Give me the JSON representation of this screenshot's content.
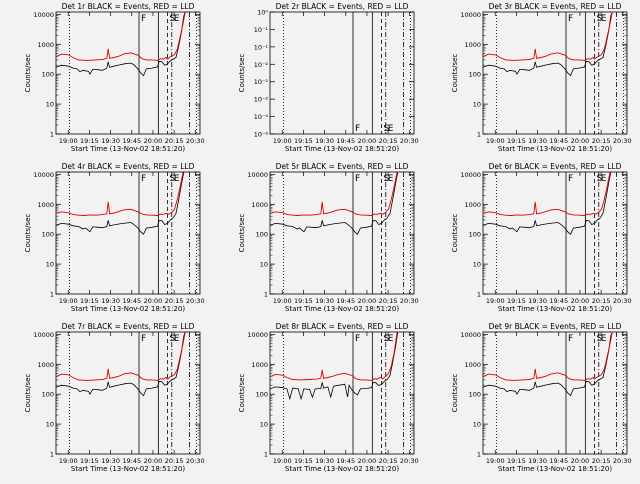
{
  "page": {
    "background": "#f2f2f2"
  },
  "colors": {
    "events": "#000000",
    "lld": "#dd0000",
    "axis": "#000000"
  },
  "x_axis": {
    "label": "Start Time (13-Nov-02 18:51:20)",
    "ticks": [
      {
        "label": "19:00",
        "t": 8.67
      },
      {
        "label": "19:15",
        "t": 23.67
      },
      {
        "label": "19:30",
        "t": 38.67
      },
      {
        "label": "19:45",
        "t": 53.67
      },
      {
        "label": "20:00",
        "t": 68.67
      },
      {
        "label": "20:15",
        "t": 83.67
      },
      {
        "label": "20:30",
        "t": 98.67
      }
    ],
    "xlim_minutes": [
      0,
      102
    ]
  },
  "y_axis_log": {
    "label": "Counts/sec",
    "ticks": [
      {
        "label": "1",
        "v": 1
      },
      {
        "label": "10",
        "v": 10
      },
      {
        "label": "100",
        "v": 100
      },
      {
        "label": "1000",
        "v": 1000
      },
      {
        "label": "10000",
        "v": 10000
      }
    ],
    "ylim": [
      1,
      12000
    ]
  },
  "y_axis_empty": {
    "label": "Counts/sec",
    "ticks": [
      {
        "label": "10⁻⁶",
        "v": 0
      },
      {
        "label": "10⁻⁴",
        "v": 1
      },
      {
        "label": "10⁻²",
        "v": 2
      },
      {
        "label": "10⁻²",
        "v": 3
      },
      {
        "label": "10⁻²",
        "v": 4
      },
      {
        "label": "10⁻¹",
        "v": 5
      },
      {
        "label": "10⁻¹",
        "v": 6
      },
      {
        "label": "10⁰",
        "v": 7
      }
    ],
    "ylim": [
      0,
      7
    ]
  },
  "event_lines": [
    {
      "t": 9.5,
      "style": "dotted"
    },
    {
      "t": 58.8,
      "style": "solid",
      "flag": "F"
    },
    {
      "t": 72.5,
      "style": "solid"
    },
    {
      "t": 79.0,
      "style": "dashed",
      "flag": "S"
    },
    {
      "t": 82.0,
      "style": "dashdot",
      "flag": "E"
    },
    {
      "t": 94.5,
      "style": "dashdot"
    },
    {
      "t": 99.5,
      "style": "dotted"
    }
  ],
  "chart_data": [
    {
      "type": "line",
      "panel": 1,
      "title": "Det 1r BLACK = Events, RED = LLD",
      "variant": "A"
    },
    {
      "type": "line",
      "panel": 2,
      "title": "Det 2r BLACK = Events, RED = LLD",
      "variant": "empty"
    },
    {
      "type": "line",
      "panel": 3,
      "title": "Det 3r BLACK = Events, RED = LLD",
      "variant": "A"
    },
    {
      "type": "line",
      "panel": 4,
      "title": "Det 4r BLACK = Events, RED = LLD",
      "variant": "B"
    },
    {
      "type": "line",
      "panel": 5,
      "title": "Det 5r BLACK = Events, RED = LLD",
      "variant": "B"
    },
    {
      "type": "line",
      "panel": 6,
      "title": "Det 6r BLACK = Events, RED = LLD",
      "variant": "B"
    },
    {
      "type": "line",
      "panel": 7,
      "title": "Det 7r BLACK = Events, RED = LLD",
      "variant": "A"
    },
    {
      "type": "line",
      "panel": 8,
      "title": "Det 8r BLACK = Events, RED = LLD",
      "variant": "C"
    },
    {
      "type": "line",
      "panel": 9,
      "title": "Det 9r BLACK = Events, RED = LLD",
      "variant": "A"
    }
  ],
  "series_profiles": {
    "A": {
      "lld": [
        [
          0,
          380
        ],
        [
          4,
          470
        ],
        [
          9,
          440
        ],
        [
          12,
          360
        ],
        [
          16,
          300
        ],
        [
          22,
          290
        ],
        [
          28,
          300
        ],
        [
          33,
          310
        ],
        [
          36,
          340
        ],
        [
          37,
          700
        ],
        [
          38,
          340
        ],
        [
          41,
          360
        ],
        [
          44,
          390
        ],
        [
          48,
          470
        ],
        [
          53,
          520
        ],
        [
          58,
          430
        ],
        [
          61,
          330
        ],
        [
          64,
          300
        ],
        [
          68,
          300
        ],
        [
          72,
          290
        ],
        [
          74,
          330
        ],
        [
          76,
          320
        ],
        [
          78,
          360
        ],
        [
          79,
          320
        ],
        [
          81,
          380
        ],
        [
          84,
          450
        ],
        [
          86,
          700
        ],
        [
          88,
          1800
        ],
        [
          90,
          5000
        ],
        [
          91.5,
          12000
        ]
      ],
      "events": [
        [
          0,
          170
        ],
        [
          4,
          200
        ],
        [
          9,
          185
        ],
        [
          12,
          160
        ],
        [
          15,
          150
        ],
        [
          17,
          120
        ],
        [
          19,
          135
        ],
        [
          23,
          125
        ],
        [
          24,
          100
        ],
        [
          26,
          145
        ],
        [
          30,
          140
        ],
        [
          33,
          135
        ],
        [
          36,
          160
        ],
        [
          37,
          260
        ],
        [
          38,
          170
        ],
        [
          41,
          185
        ],
        [
          45,
          205
        ],
        [
          49,
          225
        ],
        [
          53,
          235
        ],
        [
          55,
          210
        ],
        [
          58,
          150
        ],
        [
          60,
          110
        ],
        [
          62,
          90
        ],
        [
          64,
          150
        ],
        [
          68,
          160
        ],
        [
          72,
          175
        ],
        [
          73,
          270
        ],
        [
          75,
          260
        ],
        [
          77,
          200
        ],
        [
          79,
          220
        ],
        [
          81,
          280
        ],
        [
          83,
          320
        ],
        [
          85,
          360
        ],
        [
          87,
          900
        ],
        [
          89,
          2700
        ],
        [
          90.5,
          9000
        ],
        [
          91.5,
          12000
        ]
      ]
    },
    "B": {
      "lld": [
        [
          0,
          500
        ],
        [
          4,
          560
        ],
        [
          9,
          520
        ],
        [
          12,
          460
        ],
        [
          16,
          430
        ],
        [
          20,
          420
        ],
        [
          24,
          440
        ],
        [
          28,
          430
        ],
        [
          33,
          450
        ],
        [
          36,
          480
        ],
        [
          37,
          1200
        ],
        [
          38,
          480
        ],
        [
          41,
          510
        ],
        [
          44,
          560
        ],
        [
          48,
          650
        ],
        [
          53,
          680
        ],
        [
          58,
          560
        ],
        [
          61,
          470
        ],
        [
          64,
          440
        ],
        [
          68,
          430
        ],
        [
          72,
          420
        ],
        [
          74,
          470
        ],
        [
          76,
          460
        ],
        [
          78,
          500
        ],
        [
          80,
          470
        ],
        [
          82,
          540
        ],
        [
          84,
          700
        ],
        [
          86,
          1500
        ],
        [
          88,
          4000
        ],
        [
          90,
          12000
        ]
      ],
      "events": [
        [
          0,
          200
        ],
        [
          4,
          230
        ],
        [
          9,
          215
        ],
        [
          12,
          190
        ],
        [
          16,
          180
        ],
        [
          19,
          150
        ],
        [
          21,
          160
        ],
        [
          24,
          120
        ],
        [
          26,
          175
        ],
        [
          30,
          170
        ],
        [
          33,
          165
        ],
        [
          36,
          180
        ],
        [
          37,
          290
        ],
        [
          38,
          190
        ],
        [
          41,
          205
        ],
        [
          45,
          220
        ],
        [
          49,
          235
        ],
        [
          53,
          245
        ],
        [
          55,
          215
        ],
        [
          58,
          160
        ],
        [
          60,
          120
        ],
        [
          62,
          100
        ],
        [
          64,
          160
        ],
        [
          68,
          170
        ],
        [
          72,
          185
        ],
        [
          73,
          290
        ],
        [
          75,
          280
        ],
        [
          77,
          210
        ],
        [
          79,
          230
        ],
        [
          81,
          300
        ],
        [
          83,
          350
        ],
        [
          85,
          500
        ],
        [
          87,
          1500
        ],
        [
          89,
          5000
        ],
        [
          90.5,
          12000
        ]
      ]
    },
    "C": {
      "lld": [
        [
          0,
          380
        ],
        [
          4,
          460
        ],
        [
          9,
          430
        ],
        [
          12,
          360
        ],
        [
          16,
          310
        ],
        [
          22,
          300
        ],
        [
          28,
          310
        ],
        [
          33,
          320
        ],
        [
          36,
          340
        ],
        [
          37,
          650
        ],
        [
          38,
          340
        ],
        [
          41,
          360
        ],
        [
          44,
          390
        ],
        [
          48,
          450
        ],
        [
          53,
          500
        ],
        [
          58,
          420
        ],
        [
          61,
          330
        ],
        [
          64,
          300
        ],
        [
          68,
          300
        ],
        [
          72,
          290
        ],
        [
          74,
          330
        ],
        [
          76,
          320
        ],
        [
          78,
          360
        ],
        [
          80,
          330
        ],
        [
          82,
          400
        ],
        [
          84,
          500
        ],
        [
          86,
          900
        ],
        [
          88,
          2500
        ],
        [
          90,
          12000
        ]
      ],
      "events": [
        [
          0,
          150
        ],
        [
          4,
          175
        ],
        [
          9,
          165
        ],
        [
          12,
          150
        ],
        [
          14,
          70
        ],
        [
          16,
          160
        ],
        [
          20,
          150
        ],
        [
          22,
          70
        ],
        [
          24,
          150
        ],
        [
          28,
          145
        ],
        [
          30,
          80
        ],
        [
          32,
          150
        ],
        [
          36,
          155
        ],
        [
          37,
          250
        ],
        [
          38,
          160
        ],
        [
          41,
          175
        ],
        [
          43,
          80
        ],
        [
          45,
          185
        ],
        [
          49,
          200
        ],
        [
          53,
          215
        ],
        [
          55,
          80
        ],
        [
          56,
          200
        ],
        [
          58,
          140
        ],
        [
          60,
          110
        ],
        [
          62,
          95
        ],
        [
          64,
          150
        ],
        [
          68,
          155
        ],
        [
          72,
          165
        ],
        [
          73,
          250
        ],
        [
          75,
          240
        ],
        [
          77,
          195
        ],
        [
          79,
          210
        ],
        [
          81,
          270
        ],
        [
          83,
          310
        ],
        [
          85,
          420
        ],
        [
          87,
          1200
        ],
        [
          89,
          4000
        ],
        [
          90.5,
          12000
        ]
      ]
    }
  }
}
